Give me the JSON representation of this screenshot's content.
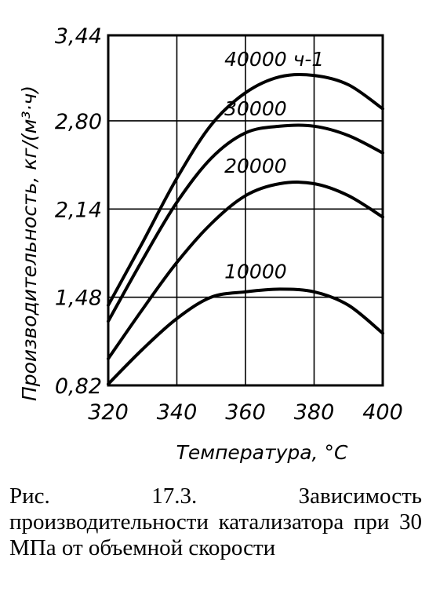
{
  "chart_data": {
    "type": "line",
    "xlabel": "Температура, °С",
    "ylabel": "Производительность, кг/(м³·ч)",
    "xlim": [
      320,
      400
    ],
    "ylim": [
      0.82,
      3.44
    ],
    "x_ticks": [
      "320",
      "340",
      "360",
      "380",
      "400"
    ],
    "y_ticks": [
      "0,82",
      "1,48",
      "2,14",
      "2,80",
      "3,44"
    ],
    "grid": true,
    "series": [
      {
        "name": "40000 ч-1",
        "x": [
          320,
          330,
          340,
          350,
          360,
          370,
          380,
          390,
          400
        ],
        "y": [
          1.42,
          1.89,
          2.37,
          2.77,
          3.01,
          3.13,
          3.14,
          3.07,
          2.89
        ]
      },
      {
        "name": "30000",
        "x": [
          320,
          330,
          340,
          350,
          360,
          370,
          380,
          390,
          400
        ],
        "y": [
          1.3,
          1.76,
          2.19,
          2.52,
          2.71,
          2.76,
          2.76,
          2.69,
          2.56
        ]
      },
      {
        "name": "20000",
        "x": [
          320,
          330,
          340,
          350,
          360,
          370,
          380,
          390,
          400
        ],
        "y": [
          1.02,
          1.39,
          1.74,
          2.03,
          2.24,
          2.33,
          2.33,
          2.24,
          2.08
        ]
      },
      {
        "name": "10000",
        "x": [
          320,
          330,
          340,
          350,
          360,
          370,
          380,
          390,
          400
        ],
        "y": [
          0.83,
          1.09,
          1.32,
          1.48,
          1.52,
          1.54,
          1.52,
          1.42,
          1.21
        ]
      }
    ]
  },
  "caption": "Рис. 17.3. Зависимость производительности катализатора при 30 МПа от объемной скорости"
}
